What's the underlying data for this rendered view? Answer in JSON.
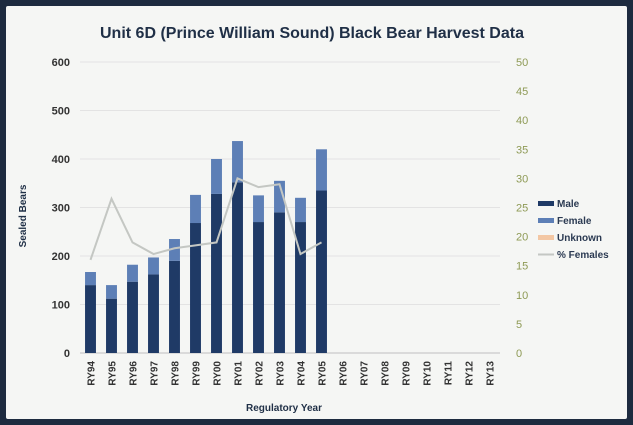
{
  "chart_data": {
    "type": "bar",
    "title": "Unit 6D (Prince William Sound) Black Bear Harvest Data",
    "xlabel": "Regulatory Year",
    "ylabel": "Sealed Bears",
    "ylim": [
      0,
      600
    ],
    "y2lim": [
      0,
      50
    ],
    "y_ticks": [
      0,
      100,
      200,
      300,
      400,
      500,
      600
    ],
    "y2_ticks": [
      0,
      5,
      10,
      15,
      20,
      25,
      30,
      35,
      40,
      45,
      50
    ],
    "categories": [
      "RY94",
      "RY95",
      "RY96",
      "RY97",
      "RY98",
      "RY99",
      "RY00",
      "RY01",
      "RY02",
      "RY03",
      "RY04",
      "RY05",
      "RY06",
      "RY07",
      "RY08",
      "RY09",
      "RY10",
      "RY11",
      "RY12",
      "RY13"
    ],
    "stacked": true,
    "grid": true,
    "legend_position": "right",
    "series": [
      {
        "name": "Male",
        "color": "#1f3a66",
        "axis": "left",
        "kind": "bar",
        "values": [
          140,
          112,
          147,
          162,
          190,
          268,
          328,
          352,
          270,
          290,
          270,
          335,
          null,
          null,
          null,
          null,
          null,
          null,
          null,
          null
        ]
      },
      {
        "name": "Female",
        "color": "#5d7fb6",
        "axis": "left",
        "kind": "bar",
        "values": [
          27,
          28,
          35,
          35,
          45,
          58,
          72,
          85,
          55,
          65,
          50,
          85,
          null,
          null,
          null,
          null,
          null,
          null,
          null,
          null
        ]
      },
      {
        "name": "Unknown",
        "color": "#f3c7a4",
        "axis": "left",
        "kind": "bar",
        "values": [
          0,
          0,
          0,
          0,
          0,
          0,
          0,
          0,
          0,
          0,
          0,
          0,
          null,
          null,
          null,
          null,
          null,
          null,
          null,
          null
        ]
      },
      {
        "name": "% Females",
        "color": "#c4c7c3",
        "axis": "right",
        "kind": "line",
        "values": [
          16,
          26.5,
          19,
          17,
          18,
          18.5,
          19,
          30,
          28.5,
          29,
          17,
          19,
          null,
          null,
          null,
          null,
          null,
          null,
          null,
          null
        ]
      }
    ]
  }
}
